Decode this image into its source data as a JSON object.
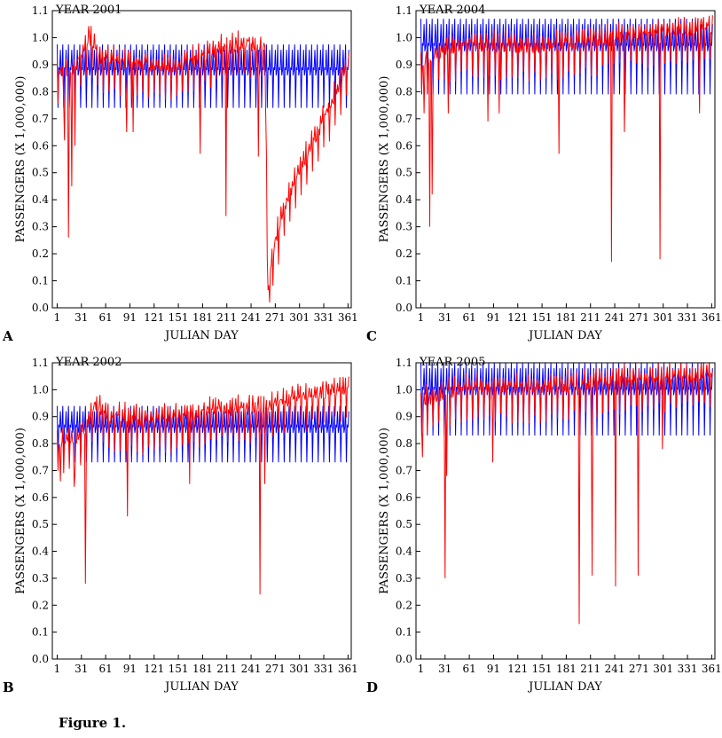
{
  "figure_caption": "Figure 1.",
  "colors": {
    "observed": "#ff0000",
    "modeled": "#0000ff",
    "axis": "#000000"
  },
  "chart_data": [
    {
      "panel_letter": "A",
      "title": "YEAR 2001",
      "type": "line",
      "xlabel": "JULIAN DAY",
      "ylabel": "PASSENGERS (X 1,000,000)",
      "xlim": [
        -5,
        365
      ],
      "ylim": [
        0.0,
        1.1
      ],
      "xticks": [
        "1",
        "31",
        "61",
        "91",
        "121",
        "151",
        "181",
        "211",
        "241",
        "271",
        "301",
        "331",
        "361"
      ],
      "yticks": [
        "0.0",
        "0.1",
        "0.2",
        "0.3",
        "0.4",
        "0.5",
        "0.6",
        "0.7",
        "0.8",
        "0.9",
        "1.0",
        "1.1"
      ],
      "grid": false,
      "series": [
        {
          "color": "#0000ff",
          "kind": "weekly-cycle",
          "period": 7,
          "low": 0.74,
          "high": 0.975,
          "mid": 0.88
        },
        {
          "color": "#ff0000",
          "kind": "daily-observed",
          "base": [
            [
              1,
              0.86
            ],
            [
              20,
              0.88
            ],
            [
              31,
              0.92
            ],
            [
              40,
              1.0
            ],
            [
              55,
              0.92
            ],
            [
              90,
              0.9
            ],
            [
              150,
              0.89
            ],
            [
              200,
              0.95
            ],
            [
              240,
              0.97
            ],
            [
              258,
              0.96
            ],
            [
              262,
              0.05
            ],
            [
              268,
              0.2
            ],
            [
              280,
              0.35
            ],
            [
              300,
              0.5
            ],
            [
              320,
              0.62
            ],
            [
              340,
              0.75
            ],
            [
              361,
              0.9
            ]
          ],
          "dips": [
            [
              10,
              0.62
            ],
            [
              15,
              0.26
            ],
            [
              19,
              0.45
            ],
            [
              23,
              0.6
            ],
            [
              87,
              0.65
            ],
            [
              95,
              0.65
            ],
            [
              178,
              0.57
            ],
            [
              210,
              0.34
            ],
            [
              250,
              0.56
            ],
            [
              264,
              0.02
            ],
            [
              275,
              0.16
            ]
          ]
        }
      ]
    },
    {
      "panel_letter": "B",
      "title": "YEAR 2002",
      "type": "line",
      "xlabel": "JULIAN DAY",
      "ylabel": "PASSENGERS (X 1,000,000)",
      "xlim": [
        -5,
        365
      ],
      "ylim": [
        0.0,
        1.1
      ],
      "xticks": [
        "1",
        "31",
        "61",
        "91",
        "121",
        "151",
        "181",
        "211",
        "241",
        "271",
        "301",
        "331",
        "361"
      ],
      "yticks": [
        "0.0",
        "0.1",
        "0.2",
        "0.3",
        "0.4",
        "0.5",
        "0.6",
        "0.7",
        "0.8",
        "0.9",
        "1.0",
        "1.1"
      ],
      "grid": false,
      "series": [
        {
          "color": "#0000ff",
          "kind": "weekly-cycle",
          "period": 7,
          "low": 0.73,
          "high": 0.94,
          "mid": 0.86
        },
        {
          "color": "#ff0000",
          "kind": "daily-observed",
          "base": [
            [
              1,
              0.8
            ],
            [
              30,
              0.82
            ],
            [
              50,
              0.95
            ],
            [
              60,
              0.9
            ],
            [
              120,
              0.88
            ],
            [
              200,
              0.92
            ],
            [
              260,
              0.93
            ],
            [
              300,
              0.97
            ],
            [
              361,
              1.0
            ]
          ],
          "dips": [
            [
              5,
              0.66
            ],
            [
              22,
              0.64
            ],
            [
              36,
              0.28
            ],
            [
              88,
              0.53
            ],
            [
              165,
              0.65
            ],
            [
              252,
              0.24
            ],
            [
              258,
              0.65
            ]
          ]
        }
      ]
    },
    {
      "panel_letter": "C",
      "title": "YEAR 2004",
      "type": "line",
      "xlabel": "JULIAN DAY",
      "ylabel": "PASSENGERS (X 1,000,000)",
      "xlim": [
        -5,
        365
      ],
      "ylim": [
        0.0,
        1.1
      ],
      "xticks": [
        "1",
        "31",
        "61",
        "91",
        "121",
        "151",
        "181",
        "211",
        "241",
        "271",
        "301",
        "331",
        "361"
      ],
      "yticks": [
        "0.0",
        "0.1",
        "0.2",
        "0.3",
        "0.4",
        "0.5",
        "0.6",
        "0.7",
        "0.8",
        "0.9",
        "1.0",
        "1.1"
      ],
      "grid": false,
      "series": [
        {
          "color": "#0000ff",
          "kind": "weekly-cycle",
          "period": 7,
          "low": 0.79,
          "high": 1.07,
          "mid": 0.97
        },
        {
          "color": "#ff0000",
          "kind": "daily-observed",
          "base": [
            [
              1,
              0.9
            ],
            [
              30,
              0.95
            ],
            [
              60,
              0.97
            ],
            [
              150,
              0.96
            ],
            [
              200,
              0.98
            ],
            [
              250,
              1.0
            ],
            [
              300,
              1.02
            ],
            [
              361,
              1.03
            ]
          ],
          "dips": [
            [
              5,
              0.72
            ],
            [
              12,
              0.3
            ],
            [
              15,
              0.42
            ],
            [
              35,
              0.72
            ],
            [
              84,
              0.69
            ],
            [
              98,
              0.72
            ],
            [
              172,
              0.57
            ],
            [
              237,
              0.17
            ],
            [
              253,
              0.65
            ],
            [
              297,
              0.18
            ],
            [
              346,
              0.72
            ]
          ]
        }
      ]
    },
    {
      "panel_letter": "D",
      "title": "YEAR 2005",
      "type": "line",
      "xlabel": "JULIAN DAY",
      "ylabel": "PASSENGERS (X 1,000,000)",
      "xlim": [
        -5,
        365
      ],
      "ylim": [
        0.0,
        1.1
      ],
      "xticks": [
        "1",
        "31",
        "61",
        "91",
        "121",
        "151",
        "181",
        "211",
        "241",
        "271",
        "301",
        "331",
        "361"
      ],
      "yticks": [
        "0.0",
        "0.1",
        "0.2",
        "0.3",
        "0.4",
        "0.5",
        "0.6",
        "0.7",
        "0.8",
        "0.9",
        "1.0",
        "1.1"
      ],
      "grid": false,
      "series": [
        {
          "color": "#0000ff",
          "kind": "weekly-cycle",
          "period": 7,
          "low": 0.83,
          "high": 1.1,
          "mid": 1.0
        },
        {
          "color": "#ff0000",
          "kind": "daily-observed",
          "base": [
            [
              1,
              0.95
            ],
            [
              30,
              0.98
            ],
            [
              60,
              1.0
            ],
            [
              150,
              1.0
            ],
            [
              250,
              1.03
            ],
            [
              361,
              1.05
            ]
          ],
          "dips": [
            [
              3,
              0.75
            ],
            [
              31,
              0.3
            ],
            [
              33,
              0.68
            ],
            [
              90,
              0.73
            ],
            [
              197,
              0.13
            ],
            [
              213,
              0.31
            ],
            [
              242,
              0.27
            ],
            [
              270,
              0.31
            ],
            [
              300,
              0.78
            ]
          ]
        }
      ]
    }
  ]
}
